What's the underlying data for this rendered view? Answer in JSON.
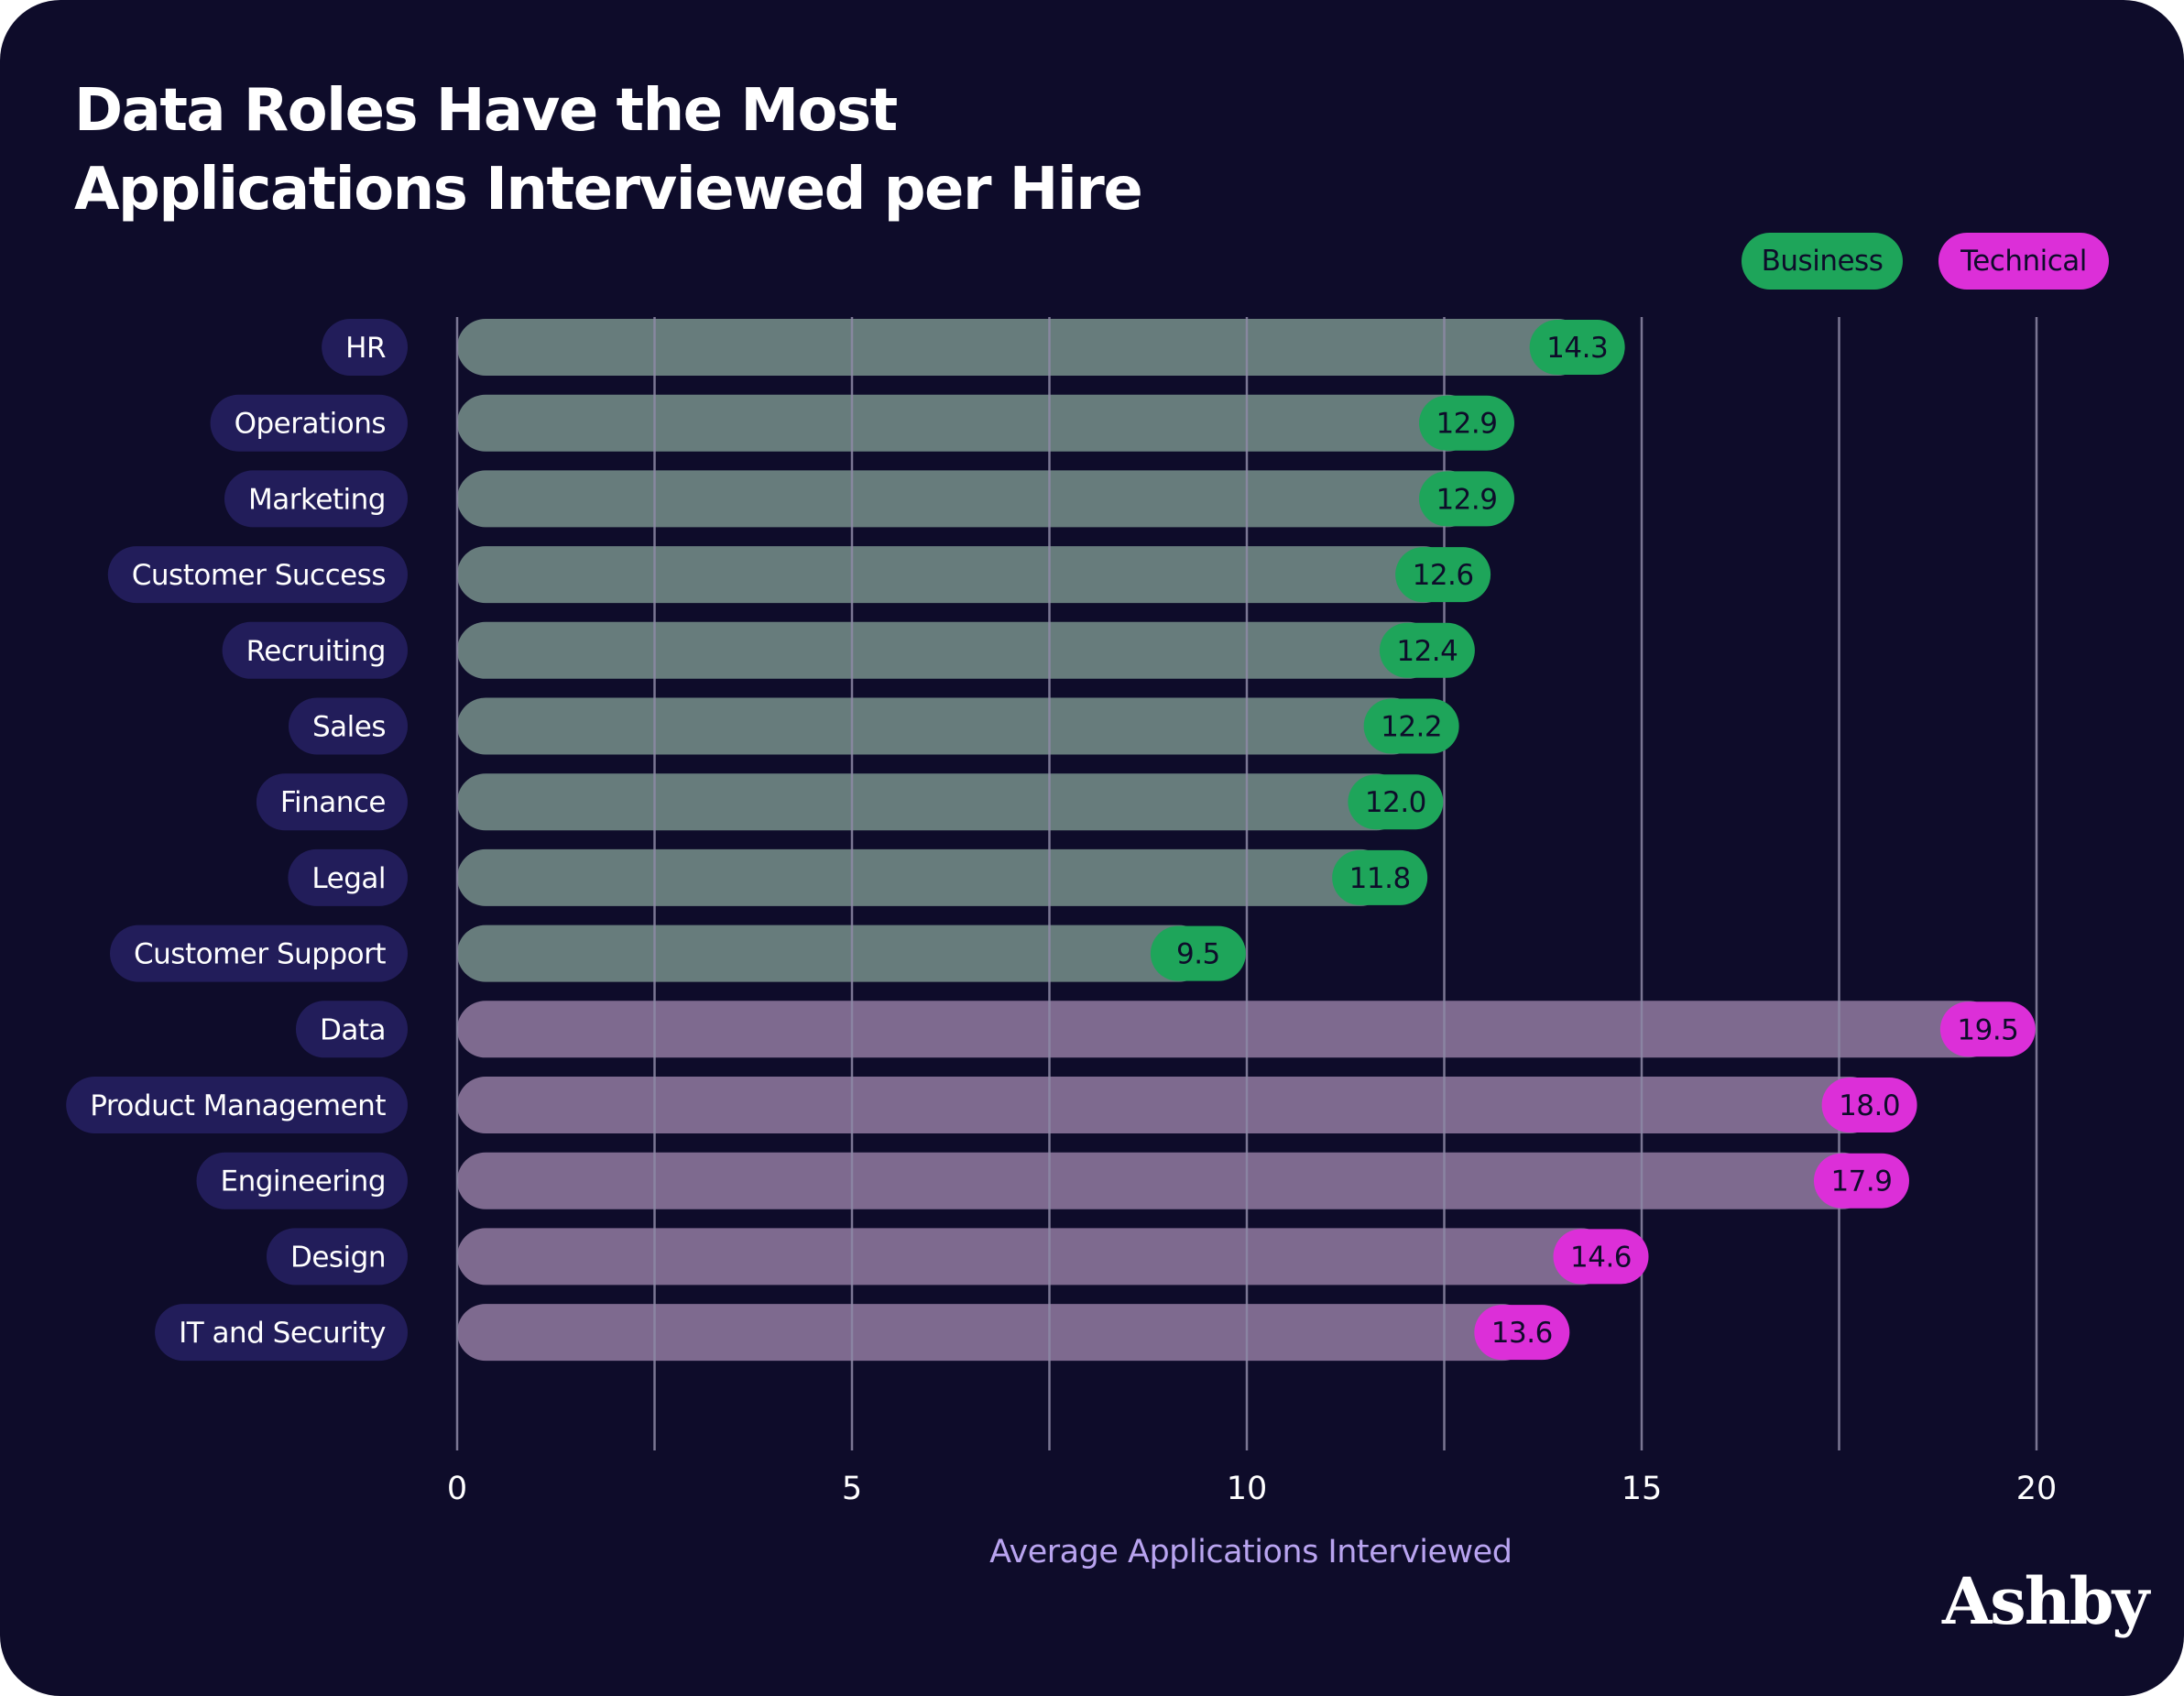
{
  "title_lines": [
    "Data Roles Have the Most",
    "Applications Interviewed per Hire"
  ],
  "legend": {
    "business": "Business",
    "technical": "Technical"
  },
  "brand": "Ashby",
  "colors": {
    "background": "#0e0c2a",
    "label_pill": "#221d5a",
    "business_bar": "#677c7c",
    "business_accent": "#1ea55a",
    "technical_bar": "#7e6a8f",
    "technical_accent": "#dc2fd8",
    "gridline": "#8d89a6",
    "axis_label": "#b9a4f0"
  },
  "chart_data": {
    "type": "bar",
    "orientation": "horizontal",
    "title": "Data Roles Have the Most Applications Interviewed per Hire",
    "xlabel": "Average Applications Interviewed",
    "ylabel": "",
    "xlim": [
      0,
      20
    ],
    "xticks": [
      0,
      5,
      10,
      15,
      20
    ],
    "gridline_step": 2.5,
    "grid": true,
    "legend_position": "top-right",
    "categories": [
      "HR",
      "Operations",
      "Marketing",
      "Customer Success",
      "Recruiting",
      "Sales",
      "Finance",
      "Legal",
      "Customer Support",
      "Data",
      "Product Management",
      "Engineering",
      "Design",
      "IT and Security"
    ],
    "values": [
      14.3,
      12.9,
      12.9,
      12.6,
      12.4,
      12.2,
      12.0,
      11.8,
      9.5,
      19.5,
      18.0,
      17.9,
      14.6,
      13.6
    ],
    "value_labels": [
      "14.3",
      "12.9",
      "12.9",
      "12.6",
      "12.4",
      "12.2",
      "12.0",
      "11.8",
      "9.5",
      "19.5",
      "18.0",
      "17.9",
      "14.6",
      "13.6"
    ],
    "groups": [
      "Business",
      "Business",
      "Business",
      "Business",
      "Business",
      "Business",
      "Business",
      "Business",
      "Business",
      "Technical",
      "Technical",
      "Technical",
      "Technical",
      "Technical"
    ]
  }
}
